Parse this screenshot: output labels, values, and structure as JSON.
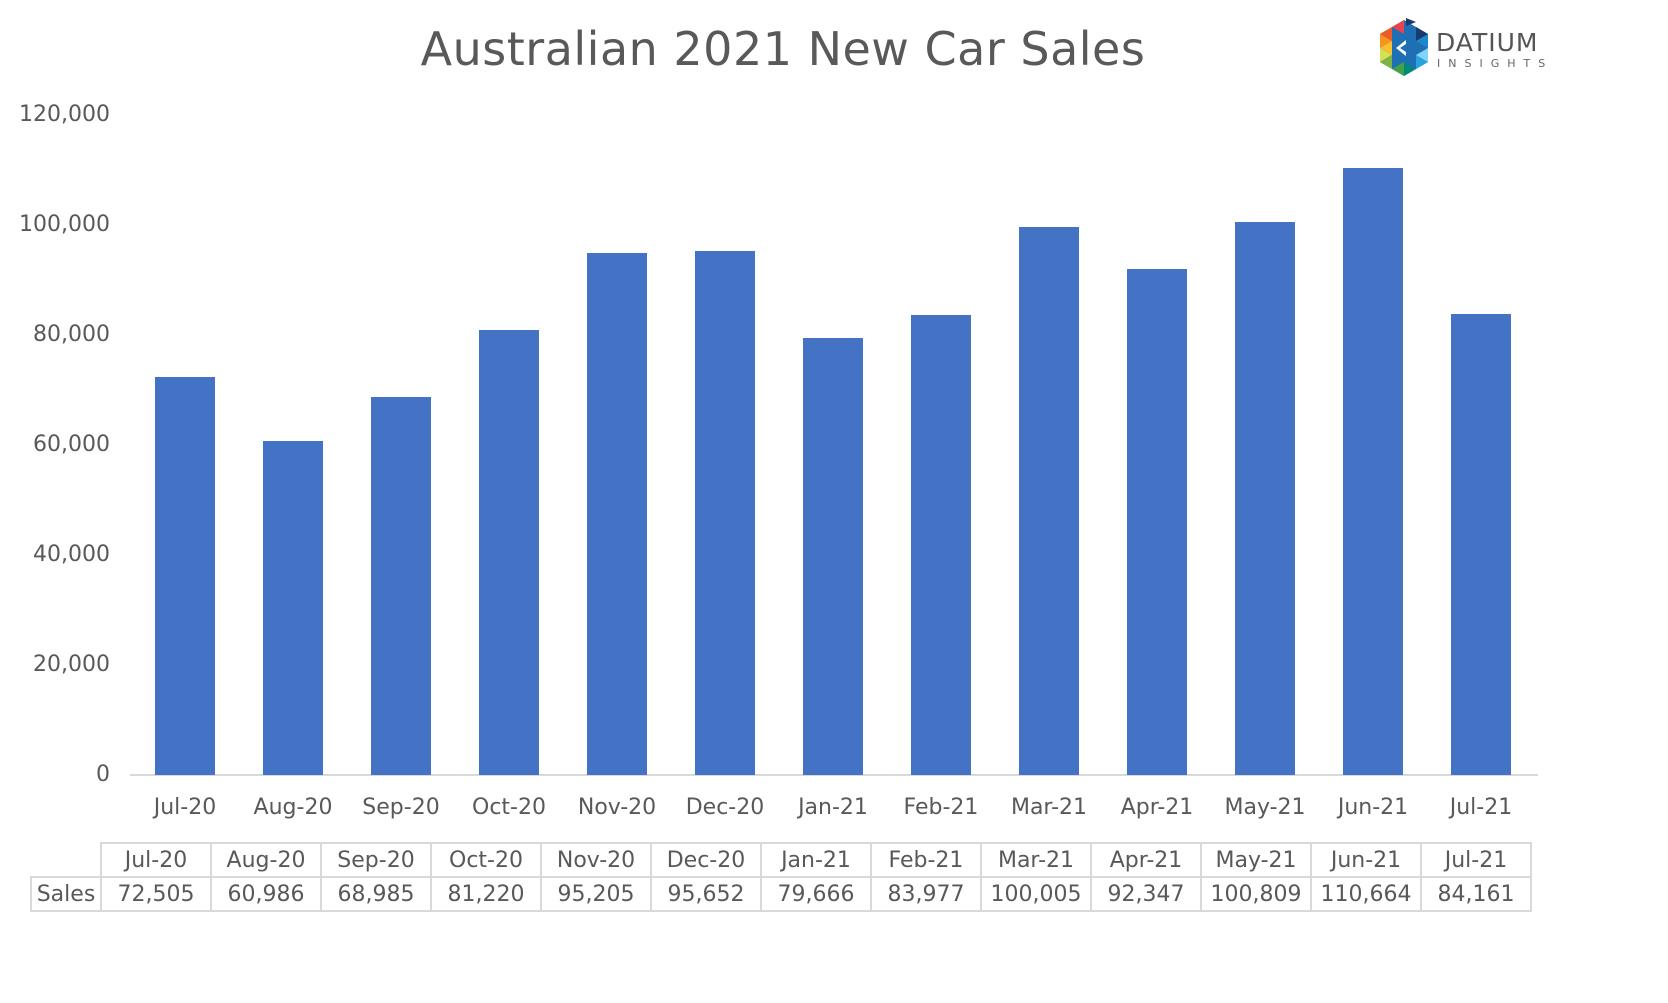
{
  "chart_title": "Australian 2021 New Car Sales",
  "logo": {
    "name": "DATIUM",
    "tagline": "INSIGHTS"
  },
  "y_axis": {
    "ticks": [
      "0",
      "20,000",
      "40,000",
      "60,000",
      "80,000",
      "100,000",
      "120,000"
    ]
  },
  "x_axis": {
    "labels": [
      "Jul-20",
      "Aug-20",
      "Sep-20",
      "Oct-20",
      "Nov-20",
      "Dec-20",
      "Jan-21",
      "Feb-21",
      "Mar-21",
      "Apr-21",
      "May-21",
      "Jun-21",
      "Jul-21"
    ]
  },
  "data_table": {
    "row_label": "Sales",
    "headers": [
      "Jul-20",
      "Aug-20",
      "Sep-20",
      "Oct-20",
      "Nov-20",
      "Dec-20",
      "Jan-21",
      "Feb-21",
      "Mar-21",
      "Apr-21",
      "May-21",
      "Jun-21",
      "Jul-21"
    ],
    "values": [
      "72,505",
      "60,986",
      "68,985",
      "81,220",
      "95,205",
      "95,652",
      "79,666",
      "83,977",
      "100,005",
      "92,347",
      "100,809",
      "110,664",
      "84,161"
    ]
  },
  "colors": {
    "bar": "#4472c4",
    "text": "#595959",
    "gridline": "#d9d9d9"
  },
  "chart_data": {
    "type": "bar",
    "title": "Australian 2021 New Car Sales",
    "xlabel": "",
    "ylabel": "",
    "categories": [
      "Jul-20",
      "Aug-20",
      "Sep-20",
      "Oct-20",
      "Nov-20",
      "Dec-20",
      "Jan-21",
      "Feb-21",
      "Mar-21",
      "Apr-21",
      "May-21",
      "Jun-21",
      "Jul-21"
    ],
    "series": [
      {
        "name": "Sales",
        "values": [
          72505,
          60986,
          68985,
          81220,
          95205,
          95652,
          79666,
          83977,
          100005,
          92347,
          100809,
          110664,
          84161
        ]
      }
    ],
    "ylim": [
      0,
      120000
    ],
    "yticks": [
      0,
      20000,
      40000,
      60000,
      80000,
      100000,
      120000
    ],
    "grid": false,
    "legend": "none",
    "data_table": true
  }
}
